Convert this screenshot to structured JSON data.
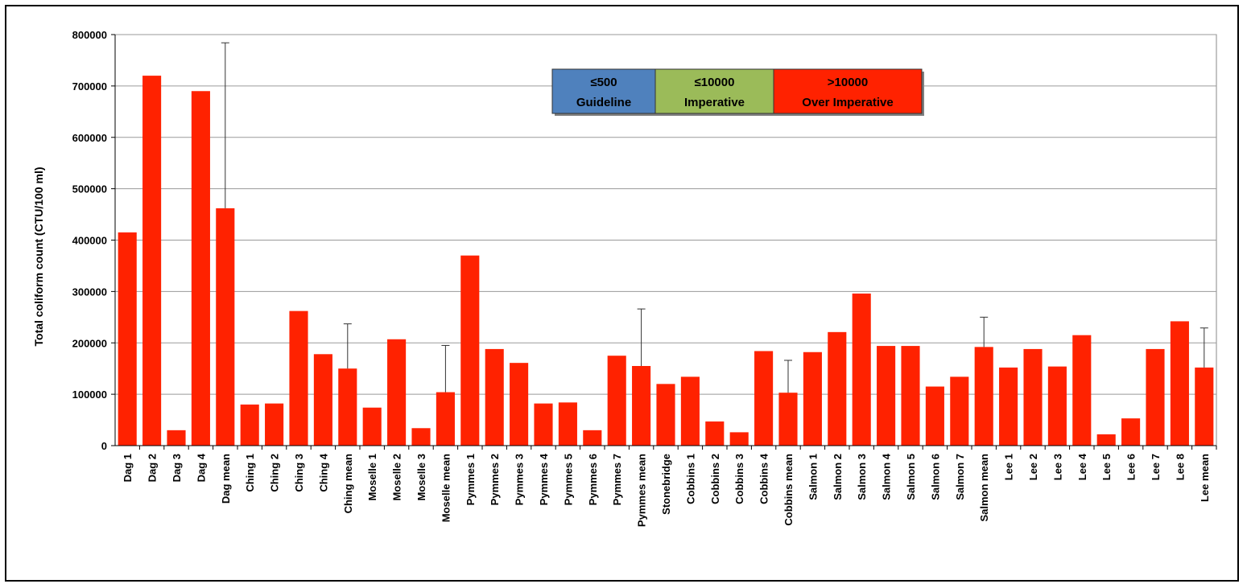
{
  "chart_data": {
    "type": "bar",
    "ylabel": "Total coliform count (CTU/100  ml)",
    "ylim": [
      0,
      800000
    ],
    "yticks": [
      "0",
      "100000",
      "200000",
      "300000",
      "400000",
      "500000",
      "600000",
      "700000",
      "800000"
    ],
    "ytick_values": [
      0,
      100000,
      200000,
      300000,
      400000,
      500000,
      600000,
      700000,
      800000
    ],
    "grid": "horizontal",
    "bar_color": "#ff2200",
    "categories": [
      "Dag 1",
      "Dag 2",
      "Dag 3",
      "Dag 4",
      "Dag mean",
      "Ching 1",
      "Ching 2",
      "Ching 3",
      "Ching 4",
      "Ching mean",
      "Moselle 1",
      "Moselle 2",
      "Moselle 3",
      "Moselle mean",
      "Pymmes 1",
      "Pymmes 2",
      "Pymmes 3",
      "Pymmes 4",
      "Pymmes 5",
      "Pymmes 6",
      "Pymmes 7",
      "Pymmes mean",
      "Stonebridge",
      "Cobbins 1",
      "Cobbins 2",
      "Cobbins 3",
      "Cobbins 4",
      "Cobbins mean",
      "Salmon 1",
      "Salmon 2",
      "Salmon 3",
      "Salmon 4",
      "Salmon 5",
      "Salmon 6",
      "Salmon 7",
      "Salmon mean",
      "Lee 1",
      "Lee 2",
      "Lee 3",
      "Lee 4",
      "Lee 5",
      "Lee 6",
      "Lee 7",
      "Lee 8",
      "Lee mean"
    ],
    "values": [
      415000,
      720000,
      30000,
      690000,
      462000,
      80000,
      82000,
      262000,
      178000,
      150000,
      74000,
      207000,
      34000,
      104000,
      370000,
      188000,
      161000,
      82000,
      84000,
      30000,
      175000,
      155000,
      120000,
      134000,
      47000,
      26000,
      184000,
      103000,
      182000,
      221000,
      296000,
      194000,
      194000,
      115000,
      134000,
      192000,
      152000,
      188000,
      154000,
      215000,
      22000,
      53000,
      188000,
      242000,
      152000
    ],
    "error_bars": [
      null,
      null,
      null,
      null,
      784000,
      null,
      null,
      null,
      null,
      237000,
      null,
      null,
      null,
      195000,
      null,
      null,
      null,
      null,
      null,
      null,
      null,
      266000,
      null,
      null,
      null,
      null,
      null,
      166000,
      null,
      null,
      null,
      null,
      null,
      null,
      null,
      250000,
      null,
      null,
      null,
      null,
      null,
      null,
      null,
      null,
      229000
    ],
    "legend": {
      "placement": "top-center",
      "items": [
        {
          "line1": "≤500",
          "line2": "Guideline",
          "color": "#4f81bd"
        },
        {
          "line1": "≤10000",
          "line2": "Imperative",
          "color": "#9bbb59"
        },
        {
          "line1": ">10000",
          "line2": "Over Imperative",
          "color": "#ff2200"
        }
      ]
    }
  }
}
